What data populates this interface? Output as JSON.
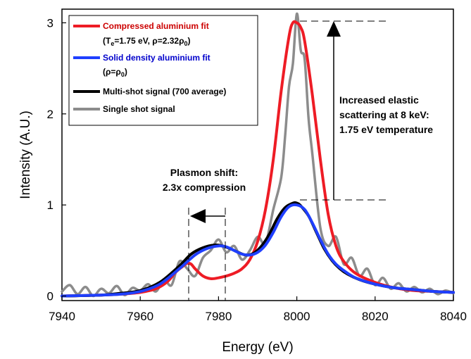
{
  "chart_data": {
    "type": "line",
    "xlabel": "Energy (eV)",
    "ylabel": "Intensity (A.U.)",
    "xlim": [
      7940,
      8040
    ],
    "ylim": [
      -0.05,
      3.15
    ],
    "xticks": [
      "7940",
      "7960",
      "7980",
      "8000",
      "8020",
      "8040"
    ],
    "yticks": [
      "0",
      "1",
      "2",
      "3"
    ],
    "grid": false,
    "legend_position": "top-left",
    "colors": {
      "compressed": "#ee1c25",
      "solid": "#1f3fff",
      "multi": "#000000",
      "single": "#8c8c8c",
      "legend_red_text": "#cc0000",
      "legend_blue_text": "#0000cc"
    },
    "legend": [
      {
        "line1": "Compressed aluminium fit",
        "line2": "(Te=1.75 eV, ρ=2.32ρ0)",
        "color": "#ee1c25",
        "text_color": "#cc0000"
      },
      {
        "line1": "Solid density aluminium fit",
        "line2": "(ρ=ρ0)",
        "color": "#1f3fff",
        "text_color": "#0000cc"
      },
      {
        "line1": "Multi-shot signal (700 average)",
        "line2": "",
        "color": "#000000",
        "text_color": "#000000"
      },
      {
        "line1": "Single shot signal",
        "line2": "",
        "color": "#8c8c8c",
        "text_color": "#000000"
      }
    ],
    "annotations": {
      "plasmon": [
        "Plasmon shift:",
        "2.3x compression"
      ],
      "elastic": [
        "Increased elastic",
        "scattering at 8 keV:",
        "1.75 eV temperature"
      ]
    },
    "series": [
      {
        "name": "Compressed aluminium fit",
        "x": [
          7940,
          7950,
          7955,
          7960,
          7964,
          7967,
          7969,
          7971,
          7972,
          7973,
          7974,
          7976,
          7978,
          7980,
          7982,
          7984,
          7986,
          7988,
          7990,
          7992,
          7994,
          7996,
          7998,
          7999,
          8000,
          8001,
          8002,
          8004,
          8006,
          8008,
          8010,
          8012,
          8015,
          8020,
          8025,
          8030,
          8035,
          8040
        ],
        "y": [
          0.0,
          0.01,
          0.02,
          0.04,
          0.08,
          0.16,
          0.26,
          0.33,
          0.36,
          0.35,
          0.3,
          0.22,
          0.19,
          0.2,
          0.22,
          0.25,
          0.3,
          0.4,
          0.6,
          0.95,
          1.5,
          2.25,
          2.85,
          3.0,
          3.0,
          2.95,
          2.8,
          2.2,
          1.5,
          0.9,
          0.55,
          0.38,
          0.25,
          0.15,
          0.09,
          0.06,
          0.05,
          0.04
        ]
      },
      {
        "name": "Solid density aluminium fit",
        "x": [
          7940,
          7950,
          7955,
          7960,
          7965,
          7970,
          7974,
          7977,
          7980,
          7982,
          7984,
          7986,
          7988,
          7990,
          7992,
          7994,
          7996,
          7998,
          8000,
          8002,
          8004,
          8006,
          8008,
          8010,
          8012,
          8015,
          8020,
          8025,
          8030,
          8035,
          8040
        ],
        "y": [
          0.0,
          0.01,
          0.02,
          0.05,
          0.13,
          0.3,
          0.45,
          0.52,
          0.55,
          0.54,
          0.5,
          0.46,
          0.45,
          0.48,
          0.56,
          0.7,
          0.87,
          0.98,
          1.0,
          0.95,
          0.8,
          0.62,
          0.46,
          0.35,
          0.28,
          0.2,
          0.13,
          0.09,
          0.07,
          0.05,
          0.04
        ]
      },
      {
        "name": "Multi-shot signal (700 average)",
        "x": [
          7940,
          7950,
          7955,
          7960,
          7965,
          7970,
          7973,
          7976,
          7979,
          7981,
          7983,
          7985,
          7987,
          7989,
          7991,
          7993,
          7995,
          7997,
          7999,
          8000,
          8001,
          8003,
          8005,
          8007,
          8009,
          8011,
          8013,
          8016,
          8020,
          8025,
          8030,
          8035,
          8040
        ],
        "y": [
          0.0,
          0.01,
          0.03,
          0.06,
          0.15,
          0.33,
          0.46,
          0.53,
          0.56,
          0.55,
          0.52,
          0.48,
          0.45,
          0.47,
          0.55,
          0.68,
          0.85,
          0.97,
          1.02,
          1.02,
          0.99,
          0.88,
          0.7,
          0.52,
          0.39,
          0.3,
          0.24,
          0.18,
          0.13,
          0.09,
          0.07,
          0.05,
          0.04
        ]
      },
      {
        "name": "Single shot signal",
        "x": [
          7940,
          7942,
          7944,
          7946,
          7948,
          7950,
          7952,
          7954,
          7956,
          7958,
          7960,
          7962,
          7964,
          7966,
          7968,
          7970,
          7972,
          7974,
          7976,
          7978,
          7980,
          7982,
          7984,
          7986,
          7988,
          7990,
          7992,
          7994,
          7996,
          7997,
          7998,
          7999,
          8000,
          8001,
          8002,
          8003,
          8004,
          8006,
          8008,
          8010,
          8012,
          8014,
          8016,
          8018,
          8020,
          8022,
          8024,
          8026,
          8028,
          8030,
          8032,
          8034,
          8036,
          8038,
          8040
        ],
        "y": [
          0.05,
          0.12,
          0.02,
          0.1,
          0.0,
          0.08,
          0.03,
          0.11,
          0.01,
          0.09,
          0.06,
          0.13,
          0.05,
          0.18,
          0.12,
          0.38,
          0.3,
          0.22,
          0.42,
          0.5,
          0.62,
          0.48,
          0.55,
          0.4,
          0.5,
          0.65,
          0.58,
          0.95,
          1.3,
          1.75,
          2.3,
          2.55,
          3.1,
          2.7,
          2.6,
          1.95,
          1.55,
          0.75,
          0.55,
          0.65,
          0.35,
          0.42,
          0.22,
          0.3,
          0.12,
          0.2,
          0.08,
          0.14,
          0.05,
          0.1,
          0.04,
          0.08,
          0.02,
          0.06,
          0.03
        ]
      }
    ]
  }
}
